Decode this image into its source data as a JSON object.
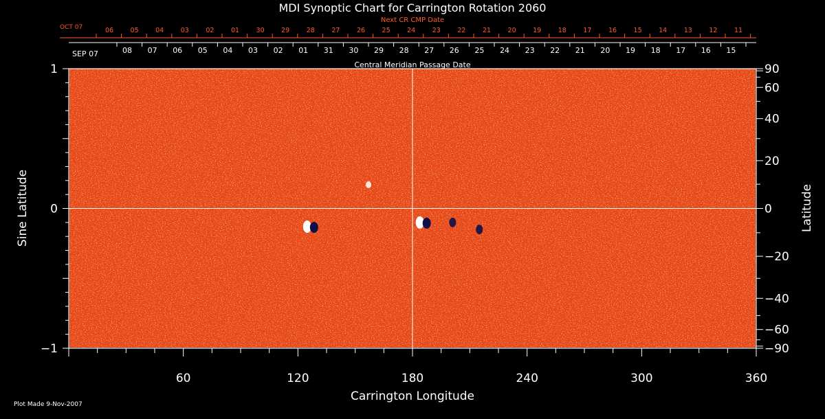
{
  "chart_data": {
    "type": "heatmap",
    "title": "MDI Synoptic Chart for Carrington Rotation 2060",
    "xlabel": "Carrington Longitude",
    "ylabel": "Sine Latitude",
    "y2label": "Latitude",
    "xlim": [
      0,
      360
    ],
    "ylim": [
      -1,
      1
    ],
    "x_ticks": [
      60,
      120,
      180,
      240,
      300,
      360
    ],
    "y_ticks": [
      {
        "value": -1,
        "label": "−1"
      },
      {
        "value": 0,
        "label": "0"
      },
      {
        "value": 1,
        "label": "1"
      }
    ],
    "y2_ticks": [
      {
        "value": 90,
        "label": "90"
      },
      {
        "value": 60,
        "label": "60"
      },
      {
        "value": 40,
        "label": "40"
      },
      {
        "value": 20,
        "label": "20"
      },
      {
        "value": 0,
        "label": "0"
      },
      {
        "value": -20,
        "label": "−20"
      },
      {
        "value": -40,
        "label": "−40"
      },
      {
        "value": -60,
        "label": "−60"
      },
      {
        "value": -90,
        "label": "−90"
      }
    ],
    "cmp_axis": {
      "label": "Central Meridian Passage Date",
      "first_label": "SEP 07",
      "dates": [
        "08",
        "07",
        "06",
        "05",
        "04",
        "03",
        "02",
        "01",
        "31",
        "30",
        "29",
        "28",
        "27",
        "26",
        "25",
        "24",
        "23",
        "22",
        "21",
        "20",
        "19",
        "18",
        "17",
        "16",
        "15"
      ]
    },
    "next_cr_axis": {
      "label": "Next CR CMP Date",
      "first_label": "OCT 07",
      "dates": [
        "06",
        "05",
        "04",
        "03",
        "02",
        "01",
        "30",
        "29",
        "28",
        "27",
        "26",
        "25",
        "24",
        "23",
        "22",
        "21",
        "20",
        "19",
        "18",
        "17",
        "16",
        "15",
        "14",
        "13",
        "12",
        "11"
      ]
    },
    "crosshair": {
      "longitude": 180,
      "sine_latitude": 0
    },
    "active_regions": [
      {
        "longitude": 127,
        "sine_latitude": -0.13,
        "polarity": "bipolar"
      },
      {
        "longitude": 186,
        "sine_latitude": -0.1,
        "polarity": "bipolar"
      },
      {
        "longitude": 201,
        "sine_latitude": -0.1,
        "polarity": "negative"
      },
      {
        "longitude": 215,
        "sine_latitude": -0.15,
        "polarity": "negative"
      },
      {
        "longitude": 157,
        "sine_latitude": 0.17,
        "polarity": "positive"
      }
    ],
    "colors": {
      "field": "#e8461a",
      "positive": "#ffffff",
      "negative": "#101048",
      "axis": "#ffffff",
      "next_cr": "#ff5a2a"
    }
  },
  "footer": {
    "plot_made": "Plot Made  9-Nov-2007"
  }
}
